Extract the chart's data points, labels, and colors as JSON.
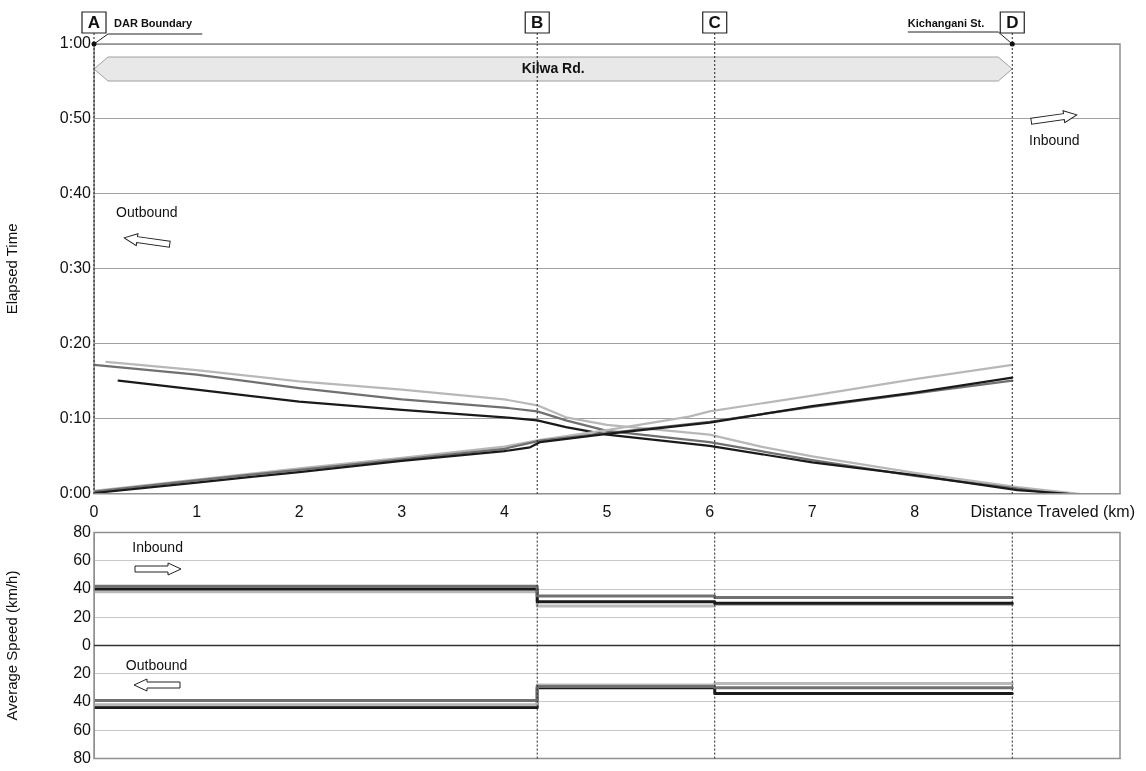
{
  "chart_data": [
    {
      "type": "line",
      "xlabel": "Distance Traveled (km)",
      "ylabel": "Elapsed Time",
      "xlim": [
        0,
        10
      ],
      "xticks": [
        0,
        1,
        2,
        3,
        4,
        5,
        6,
        7,
        8
      ],
      "ylim": [
        0,
        60
      ],
      "yticks": [
        {
          "value": 0,
          "label": "0:00"
        },
        {
          "value": 10,
          "label": "0:10"
        },
        {
          "value": 20,
          "label": "0:20"
        },
        {
          "value": 30,
          "label": "0:30"
        },
        {
          "value": 40,
          "label": "0:40"
        },
        {
          "value": 50,
          "label": "0:50"
        },
        {
          "value": 60,
          "label": "1:00"
        }
      ],
      "grid": "y",
      "series": [
        {
          "color": "#1a1a1a",
          "x": [
            0,
            1,
            2,
            3,
            4,
            4.25,
            4.35,
            5,
            6,
            7,
            8,
            8.95
          ],
          "values": [
            0.1,
            1.5,
            2.9,
            4.4,
            5.7,
            6.2,
            6.9,
            8.0,
            9.5,
            11.7,
            13.5,
            15.5
          ]
        },
        {
          "color": "#707070",
          "x": [
            0,
            1,
            2,
            3,
            4,
            4.35,
            5,
            6,
            7,
            8,
            8.95
          ],
          "values": [
            0.3,
            1.8,
            3.2,
            4.6,
            6.0,
            7.1,
            8.1,
            9.6,
            11.6,
            13.4,
            15.1
          ]
        },
        {
          "color": "#b8b8b8",
          "x": [
            0,
            1,
            2,
            3,
            4,
            4.35,
            5,
            5.8,
            6,
            7,
            8,
            8.95
          ],
          "values": [
            0.4,
            1.9,
            3.4,
            4.8,
            6.3,
            7.2,
            8.5,
            10.3,
            11.0,
            13.1,
            15.3,
            17.2
          ]
        },
        {
          "color": "#1a1a1a",
          "x": [
            0.24,
            1,
            2,
            3,
            4,
            4.32,
            4.6,
            5,
            6,
            7,
            8,
            9,
            9.5
          ],
          "values": [
            15.1,
            13.9,
            12.3,
            11.2,
            10.2,
            9.8,
            8.9,
            7.9,
            6.4,
            4.2,
            2.5,
            0.5,
            0
          ]
        },
        {
          "color": "#707070",
          "x": [
            0,
            1,
            2,
            3,
            4,
            4.32,
            4.6,
            5,
            6,
            7,
            8,
            9,
            9.4
          ],
          "values": [
            17.2,
            15.9,
            14.1,
            12.6,
            11.5,
            11.0,
            9.8,
            8.4,
            6.9,
            4.5,
            2.4,
            0.7,
            0
          ]
        },
        {
          "color": "#b8b8b8",
          "x": [
            0.12,
            1,
            2,
            3,
            4,
            4.32,
            4.6,
            5,
            6,
            6.5,
            7,
            8,
            9,
            9.6
          ],
          "values": [
            17.6,
            16.5,
            15.0,
            13.9,
            12.6,
            11.8,
            10.2,
            9.2,
            7.9,
            6.3,
            5.0,
            2.8,
            0.9,
            0
          ]
        }
      ],
      "ref_lines": [
        {
          "axis": "x",
          "value": 0,
          "label": "A",
          "line_style": "dotted"
        },
        {
          "axis": "x",
          "value": 4.32,
          "label": "B",
          "line_style": "dotted"
        },
        {
          "axis": "x",
          "value": 6.05,
          "label": "C",
          "line_style": "dotted"
        },
        {
          "axis": "x",
          "value": 8.95,
          "label": "D",
          "line_style": "dotted"
        }
      ],
      "annotations": [
        "DAR Boundary",
        "Kichangani St.",
        "Kilwa Rd.",
        "Outbound",
        "Inbound"
      ]
    },
    {
      "type": "step",
      "ylabel": "Average Speed (km/h)",
      "xlim": [
        0,
        10
      ],
      "x": [
        0,
        4.32,
        6.05,
        8.95
      ],
      "ylim": [
        -80,
        80
      ],
      "yticks": [
        {
          "value": -80,
          "label": "80"
        },
        {
          "value": -60,
          "label": "60"
        },
        {
          "value": -40,
          "label": "40"
        },
        {
          "value": -20,
          "label": "20"
        },
        0,
        20,
        40,
        60,
        80
      ],
      "grid": "y",
      "tick_labels": "y",
      "series": [
        {
          "color": "#707070",
          "values": [
            42,
            35,
            34,
            34
          ]
        },
        {
          "color": "#1a1a1a",
          "values": [
            40,
            31,
            30,
            30
          ]
        },
        {
          "color": "#b8b8b8",
          "values": [
            38,
            28,
            29,
            29
          ]
        },
        {
          "color": "#707070",
          "values": [
            -39,
            -29,
            -30,
            -30
          ]
        },
        {
          "color": "#b8b8b8",
          "values": [
            -42,
            -28,
            -27,
            -27
          ]
        },
        {
          "color": "#1a1a1a",
          "values": [
            -44,
            -30,
            -34,
            -34
          ]
        }
      ],
      "ref_lines": [
        {
          "axis": "x",
          "value": 4.32,
          "line_style": "dotted"
        },
        {
          "axis": "x",
          "value": 6.05,
          "line_style": "dotted"
        },
        {
          "axis": "x",
          "value": 8.95,
          "line_style": "dotted"
        },
        {
          "axis": "y",
          "value": 0,
          "color": "#333333",
          "line_style": "solid"
        }
      ],
      "annotations": [
        "Inbound",
        "Outbound"
      ]
    }
  ]
}
